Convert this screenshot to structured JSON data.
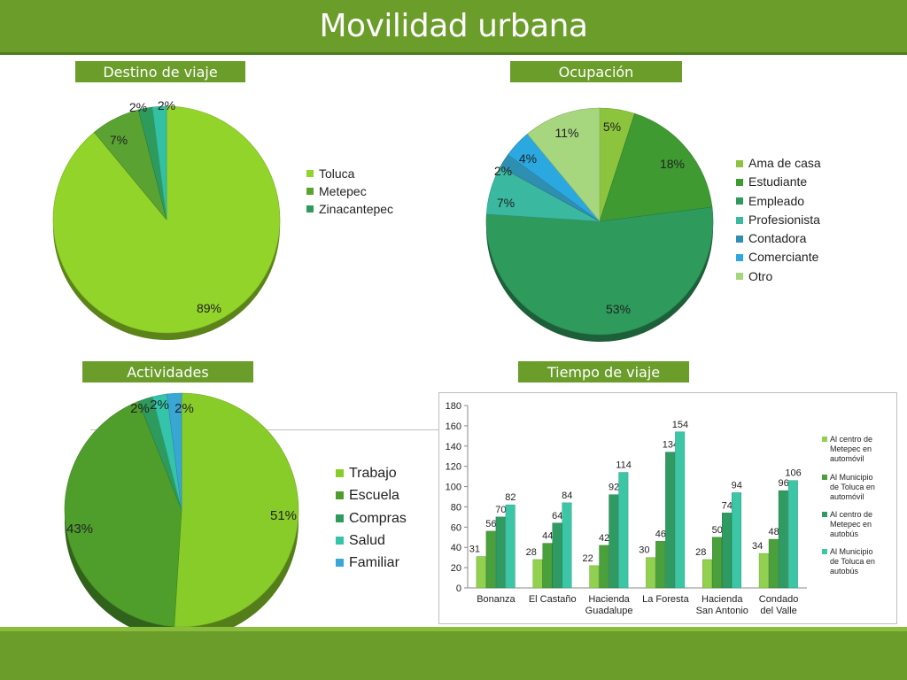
{
  "title": "Movilidad urbana",
  "sections": {
    "destino": "Destino de viaje",
    "ocupacion": "Ocupación",
    "actividades": "Actividades",
    "tiempo": "Tiempo de viaje"
  },
  "chart_data": [
    {
      "type": "pie",
      "title": "Destino de viaje",
      "categories": [
        "Toluca",
        "Metepec",
        "Zinacantepec",
        "",
        ""
      ],
      "values": [
        89,
        7,
        2,
        2,
        0
      ],
      "labels": [
        "89%",
        "7%",
        "2%",
        "2%",
        ""
      ],
      "legend_labels": [
        "Toluca",
        "Metepec",
        "Zinacantepec"
      ],
      "colors": [
        "#92d42a",
        "#5aa332",
        "#2e9a5c",
        "#34c0a3",
        "#7ab84a"
      ],
      "legend": "right"
    },
    {
      "type": "pie",
      "title": "Ocupación",
      "categories": [
        "Ama de casa",
        "Estudiante",
        "Empleado",
        "Profesionista",
        "Contadora",
        "Comerciante",
        "Otro"
      ],
      "values": [
        5,
        18,
        53,
        7,
        2,
        4,
        11
      ],
      "labels": [
        "5%",
        "18%",
        "53%",
        "7%",
        "2%",
        "4%",
        "11%"
      ],
      "colors": [
        "#8cc43e",
        "#3f9a32",
        "#2e9a5c",
        "#3ab8a0",
        "#2f8fb0",
        "#2ba8e0",
        "#a6d67e"
      ],
      "legend": "right"
    },
    {
      "type": "pie",
      "title": "Actividades",
      "categories": [
        "Trabajo",
        "Escuela",
        "Compras",
        "Salud",
        "Familiar"
      ],
      "values": [
        51,
        43,
        2,
        2,
        2
      ],
      "labels": [
        "51%",
        "43%",
        "2%",
        "2%",
        "2%"
      ],
      "colors": [
        "#88cc2a",
        "#4f9e2c",
        "#2e9a5c",
        "#34c4aa",
        "#3aa6d4"
      ],
      "legend": "right"
    },
    {
      "type": "bar",
      "title": "Tiempo de viaje",
      "categories": [
        "Bonanza",
        "El Castaño",
        "Hacienda Guadalupe",
        "La Foresta",
        "Hacienda San Antonio",
        "Condado del Valle"
      ],
      "series": [
        {
          "name": "Al centro de Metepec en automóvil",
          "values": [
            31,
            28,
            22,
            30,
            28,
            34
          ],
          "color": "#92d050"
        },
        {
          "name": "Al Municipio de Toluca en automóvil",
          "values": [
            56,
            44,
            42,
            46,
            50,
            48
          ],
          "color": "#4aa03a"
        },
        {
          "name": "Al centro de Metepec en autobús",
          "values": [
            70,
            64,
            92,
            134,
            74,
            96
          ],
          "color": "#2f9a62"
        },
        {
          "name": "Al Municipio de Toluca en autobús",
          "values": [
            82,
            84,
            114,
            154,
            94,
            106
          ],
          "color": "#3cc6a6"
        }
      ],
      "ylim": [
        0,
        180
      ],
      "yticks": [
        0,
        20,
        40,
        60,
        80,
        100,
        120,
        140,
        160,
        180
      ],
      "grid": false,
      "legend": "right"
    }
  ]
}
